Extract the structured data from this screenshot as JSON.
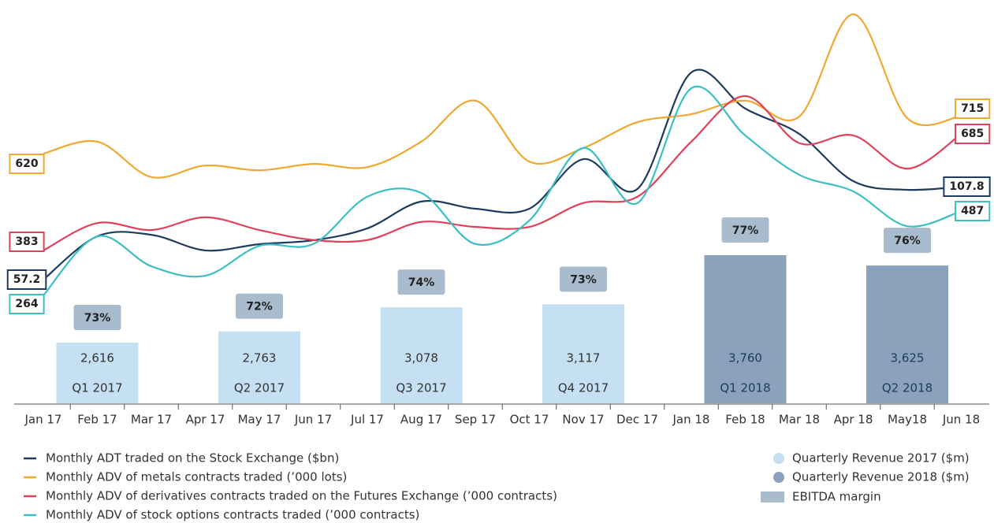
{
  "chart_data": [
    {
      "type": "line",
      "categories": [
        "Jan 17",
        "Feb 17",
        "Mar 17",
        "Apr 17",
        "May 17",
        "Jun 17",
        "Jul 17",
        "Aug 17",
        "Sep 17",
        "Oct 17",
        "Nov 17",
        "Dec 17",
        "Jan 18",
        "Feb 18",
        "Mar 18",
        "Apr 18",
        "May18",
        "Jun 18"
      ],
      "series": [
        {
          "name": "Monthly ADT traded on the Stock Exchange ($bn)",
          "color": "#1f3a5f",
          "values": [
            57.2,
            80.8,
            81.6,
            73.1,
            76.5,
            78.6,
            85.1,
            99.7,
            95.8,
            95.8,
            122.8,
            106.5,
            170.0,
            150.3,
            136.5,
            110.8,
            106.1,
            107.8
          ]
        },
        {
          "name": "Monthly ADV of metals contracts traded (’000 lots)",
          "color": "#f0a830",
          "values": [
            620,
            650,
            561,
            590,
            578,
            594,
            586,
            650,
            753,
            600,
            634,
            699,
            719,
            753,
            713,
            970,
            709,
            715
          ]
        },
        {
          "name": "Monthly ADV of derivatives contracts traded on the Futures Exchange (’000 contracts)",
          "color": "#e0405a",
          "values": [
            383,
            454,
            436,
            469,
            436,
            410,
            410,
            457,
            444,
            444,
            506,
            522,
            665,
            783,
            661,
            681,
            595,
            685
          ]
        },
        {
          "name": "Monthly ADV of stock options contracts traded (’000 contracts)",
          "color": "#3bbfc4",
          "values": [
            264,
            420,
            341,
            316,
            395,
            400,
            525,
            535,
            400,
            462,
            654,
            508,
            812,
            687,
            583,
            539,
            447,
            487
          ]
        }
      ]
    },
    {
      "type": "bar",
      "categories": [
        "Q1 2017",
        "Q2 2017",
        "Q3 2017",
        "Q4 2017",
        "Q1 2018",
        "Q2 2018"
      ],
      "series": [
        {
          "name": "Quarterly Revenue 2017 ($m)",
          "color": "#c5e0f2",
          "values": [
            2616,
            2763,
            3078,
            3117,
            null,
            null
          ],
          "value_labels": [
            "2,616",
            "2,763",
            "3,078",
            "3,117",
            null,
            null
          ]
        },
        {
          "name": "Quarterly Revenue 2018 ($m)",
          "color": "#8aa2bb",
          "values": [
            null,
            null,
            null,
            null,
            3760,
            3625
          ],
          "value_labels": [
            null,
            null,
            null,
            null,
            "3,760",
            "3,625"
          ]
        }
      ],
      "margin": {
        "name": "EBITDA margin",
        "color": "#a9bccd",
        "values": [
          73,
          72,
          74,
          73,
          77,
          76
        ],
        "value_labels": [
          "73%",
          "72%",
          "74%",
          "73%",
          "77%",
          "76%"
        ]
      }
    }
  ]
}
